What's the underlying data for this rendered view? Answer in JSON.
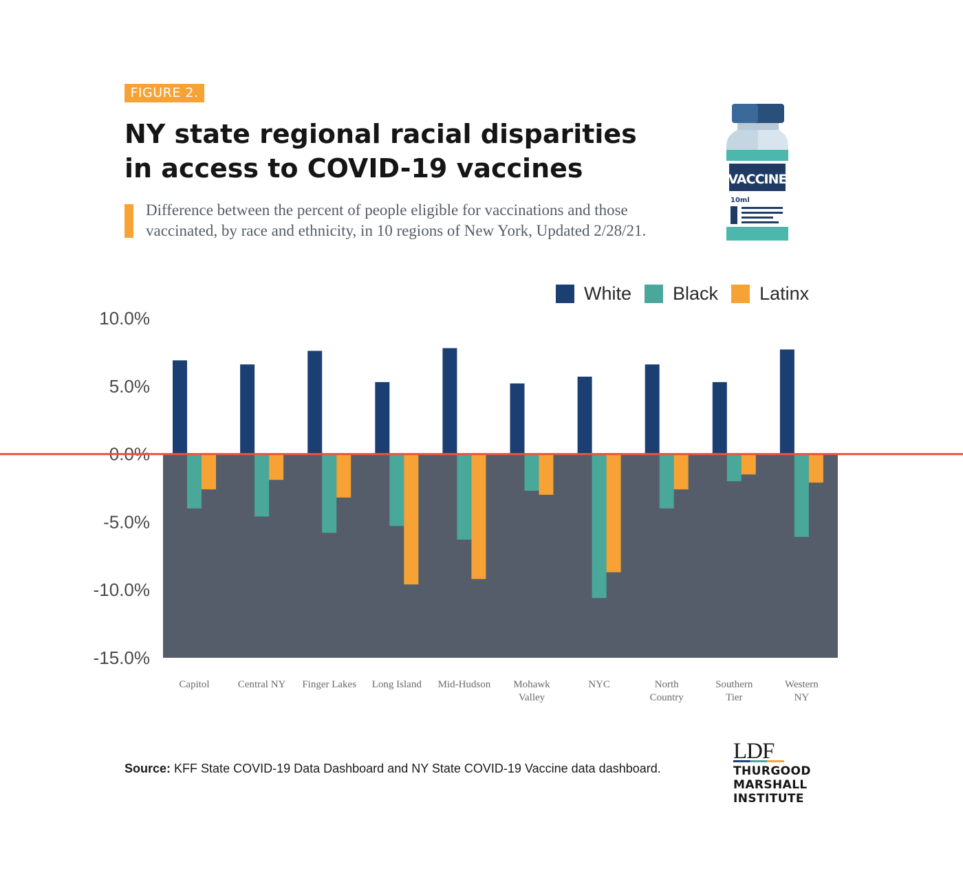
{
  "figure": {
    "badge": "FIGURE 2.",
    "title_lines": [
      "NY state regional racial disparities",
      "in access to COVID-19 vaccines"
    ],
    "subtitle_lines": [
      "Difference between the percent of people eligible for vaccinations and those",
      "vaccinated, by race and ethnicity, in 10 regions of New York, Updated 2/28/21."
    ]
  },
  "vial": {
    "label": "VACCINE",
    "volume": "10ml",
    "icon": "vaccine-vial-icon"
  },
  "chart_data": {
    "type": "bar",
    "categories": [
      [
        "Capitol"
      ],
      [
        "Central NY"
      ],
      [
        "Finger Lakes"
      ],
      [
        "Long Island"
      ],
      [
        "Mid-Hudson"
      ],
      [
        "Mohawk",
        "Valley"
      ],
      [
        "NYC"
      ],
      [
        "North",
        "Country"
      ],
      [
        "Southern",
        "Tier"
      ],
      [
        "Western",
        "NY"
      ]
    ],
    "series": [
      {
        "name": "White",
        "color": "#1c3f73",
        "values": [
          6.9,
          6.6,
          7.6,
          5.3,
          7.8,
          5.2,
          5.7,
          6.6,
          5.3,
          7.7
        ]
      },
      {
        "name": "Black",
        "color": "#4aa89a",
        "values": [
          -4.0,
          -4.6,
          -5.8,
          -5.3,
          -6.3,
          -2.7,
          -10.6,
          -4.0,
          -2.0,
          -6.1
        ]
      },
      {
        "name": "Latinx",
        "color": "#f7a235",
        "values": [
          -2.6,
          -1.9,
          -3.2,
          -9.6,
          -9.2,
          -3.0,
          -8.7,
          -2.6,
          -1.5,
          -2.1
        ]
      }
    ],
    "ylim": [
      -15,
      10
    ],
    "yticks": [
      10,
      5,
      0,
      -5,
      -10,
      -15
    ],
    "ytick_labels": [
      "10.0%",
      "5.0%",
      "0.0%",
      "-5.0%",
      "-10.0%",
      "-15.0%"
    ],
    "negative_region_color": "#555d6b",
    "zero_line_color": "#e8533f",
    "legend_position": "top-right",
    "grid": false
  },
  "source": {
    "label": "Source:",
    "text": "KFF State COVID-19 Data Dashboard and NY State COVID-19 Vaccine data dashboard."
  },
  "logo": {
    "mark": "LDF",
    "lines": [
      "THURGOOD",
      "MARSHALL",
      "INSTITUTE"
    ]
  }
}
